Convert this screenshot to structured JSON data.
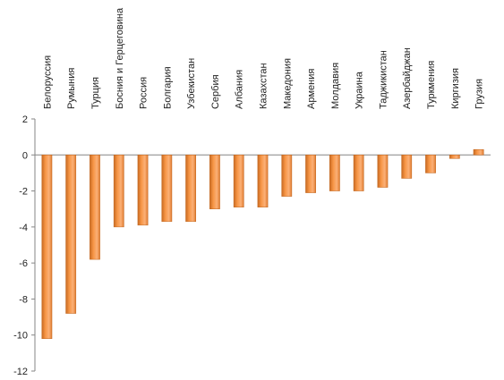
{
  "chart_data": {
    "type": "bar",
    "categories": [
      "Белоруссия",
      "Румыния",
      "Турция",
      "Босния и Герцеговина",
      "Россия",
      "Болгария",
      "Узбекистан",
      "Сербия",
      "Албания",
      "Казахстан",
      "Македония",
      "Армения",
      "Молдавия",
      "Украина",
      "Таджикистан",
      "Азербайджан",
      "Туркмения",
      "Киргизия",
      "Грузия"
    ],
    "values": [
      -10.2,
      -8.8,
      -5.8,
      -4.0,
      -3.9,
      -3.7,
      -3.7,
      -3.0,
      -2.9,
      -2.9,
      -2.3,
      -2.1,
      -2.0,
      -2.0,
      -1.8,
      -1.3,
      -1.0,
      -0.2,
      0.3
    ],
    "ylim": [
      -12,
      2
    ],
    "yticks": [
      2,
      0,
      -2,
      -4,
      -6,
      -8,
      -10,
      -12
    ],
    "grid": false,
    "legend": "none",
    "bar_color": "#F79646",
    "bar_dark_edge": "#C0661F"
  }
}
